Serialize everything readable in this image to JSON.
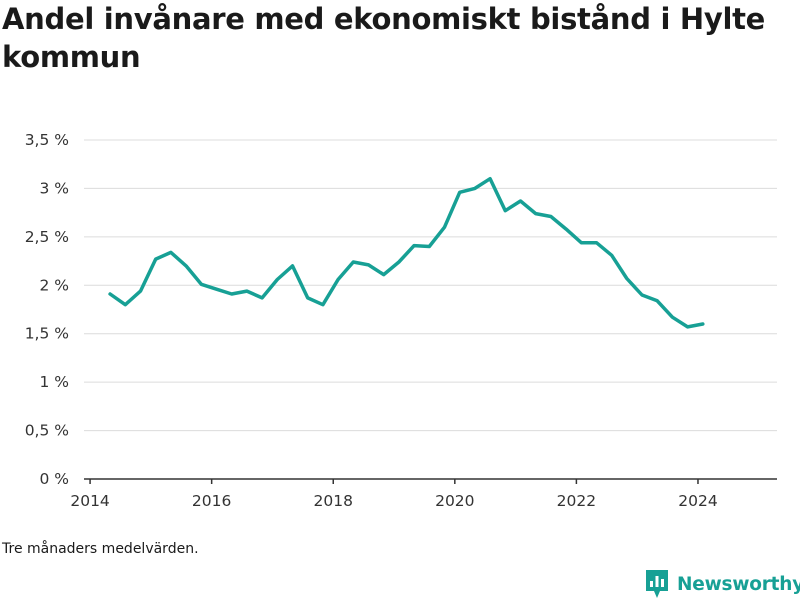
{
  "title": "Andel invånare med ekonomiskt bistånd i Hylte kommun",
  "note": "Tre månaders medelvärden.",
  "brand": {
    "name": "Newsworthy",
    "color": "#17a095",
    "icon": "bar-chart-logo-icon"
  },
  "chart_data": {
    "type": "line",
    "title": "Andel invånare med ekonomiskt bistånd i Hylte kommun",
    "xlabel": "",
    "ylabel": "",
    "xlim": [
      2013.9,
      2025.3
    ],
    "ylim": [
      0,
      3.5
    ],
    "x_ticks": [
      2014,
      2016,
      2018,
      2020,
      2022,
      2024
    ],
    "y_ticks": [
      0,
      0.5,
      1,
      1.5,
      2,
      2.5,
      3,
      3.5
    ],
    "y_tick_labels": [
      "0 %",
      "0,5 %",
      "1 %",
      "1,5 %",
      "2 %",
      "2,5 %",
      "3 %",
      "3,5 %"
    ],
    "grid": "horizontal",
    "line_color": "#17a095",
    "series": [
      {
        "x": [
          2014.33,
          2014.58,
          2014.83,
          2015.08,
          2015.33,
          2015.58,
          2015.83,
          2016.08,
          2016.33,
          2016.58,
          2016.83,
          2017.08,
          2017.33,
          2017.58,
          2017.83,
          2018.08,
          2018.33,
          2018.58,
          2018.83,
          2019.08,
          2019.33,
          2019.58,
          2019.83,
          2020.08,
          2020.33,
          2020.58,
          2020.83,
          2021.08,
          2021.33,
          2021.58,
          2021.83,
          2022.08,
          2022.33,
          2022.58,
          2022.83,
          2023.08,
          2023.33,
          2023.58,
          2023.83,
          2024.08
        ],
        "values": [
          1.91,
          1.8,
          1.94,
          2.27,
          2.34,
          2.2,
          2.01,
          1.96,
          1.91,
          1.94,
          1.87,
          2.06,
          2.2,
          1.87,
          1.8,
          2.06,
          2.24,
          2.21,
          2.11,
          2.24,
          2.41,
          2.4,
          2.6,
          2.96,
          3.0,
          3.1,
          2.77,
          2.87,
          2.74,
          2.71,
          2.58,
          2.44,
          2.44,
          2.31,
          2.07,
          1.9,
          1.84,
          1.67,
          1.57,
          1.6
        ]
      }
    ]
  }
}
